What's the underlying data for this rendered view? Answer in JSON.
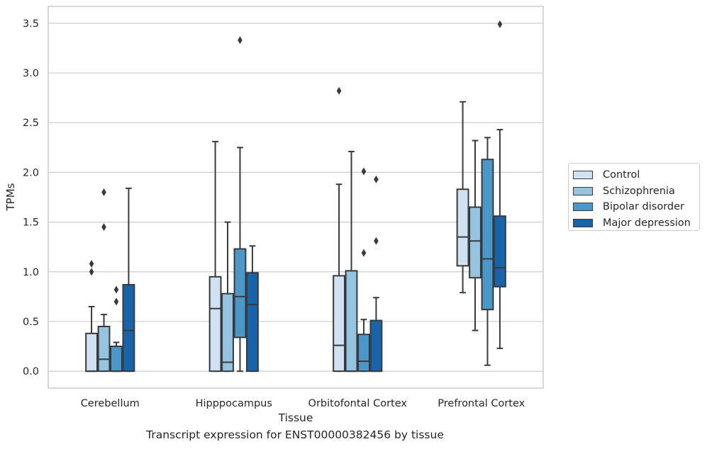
{
  "chart_data": {
    "type": "box",
    "ylabel": "TPMs",
    "xlabel": "Tissue",
    "caption": "Transcript expression for ENST00000382456 by tissue",
    "ylim": [
      -0.17,
      3.67
    ],
    "yticks": [
      0.0,
      0.5,
      1.0,
      1.5,
      2.0,
      2.5,
      3.0,
      3.5
    ],
    "ytick_labels": [
      "0.0",
      "0.5",
      "1.0",
      "1.5",
      "2.0",
      "2.5",
      "3.0",
      "3.5"
    ],
    "grid": "horizontal",
    "legend_position": "right",
    "categories": [
      "Cerebellum",
      "Hipppocampus",
      "Orbitofontal Cortex",
      "Prefrontal Cortex"
    ],
    "series": [
      {
        "name": "Control",
        "color": "#d0e1f2",
        "boxes": [
          {
            "whislo": 0.0,
            "q1": 0.0,
            "med": 0.0,
            "q3": 0.38,
            "whishi": 0.65,
            "fliers": [
              1.0,
              1.08
            ]
          },
          {
            "whislo": 0.0,
            "q1": 0.0,
            "med": 0.63,
            "q3": 0.95,
            "whishi": 2.31,
            "fliers": []
          },
          {
            "whislo": 0.0,
            "q1": 0.0,
            "med": 0.26,
            "q3": 0.96,
            "whishi": 1.88,
            "fliers": [
              2.82
            ]
          },
          {
            "whislo": 0.79,
            "q1": 1.06,
            "med": 1.35,
            "q3": 1.83,
            "whishi": 2.71,
            "fliers": []
          }
        ]
      },
      {
        "name": "Schizophrenia",
        "color": "#94c4df",
        "boxes": [
          {
            "whislo": 0.0,
            "q1": 0.0,
            "med": 0.12,
            "q3": 0.45,
            "whishi": 0.57,
            "fliers": [
              1.45,
              1.8
            ]
          },
          {
            "whislo": 0.0,
            "q1": 0.0,
            "med": 0.09,
            "q3": 0.78,
            "whishi": 1.5,
            "fliers": []
          },
          {
            "whislo": 0.0,
            "q1": 0.0,
            "med": 0.0,
            "q3": 1.01,
            "whishi": 2.21,
            "fliers": []
          },
          {
            "whislo": 0.41,
            "q1": 0.94,
            "med": 1.31,
            "q3": 1.65,
            "whishi": 2.32,
            "fliers": []
          }
        ]
      },
      {
        "name": "Bipolar disorder",
        "color": "#4a98c9",
        "boxes": [
          {
            "whislo": 0.0,
            "q1": 0.0,
            "med": 0.0,
            "q3": 0.25,
            "whishi": 0.29,
            "fliers": [
              0.7,
              0.82
            ]
          },
          {
            "whislo": 0.0,
            "q1": 0.34,
            "med": 0.75,
            "q3": 1.23,
            "whishi": 2.25,
            "fliers": [
              3.33
            ]
          },
          {
            "whislo": 0.0,
            "q1": 0.0,
            "med": 0.1,
            "q3": 0.37,
            "whishi": 0.52,
            "fliers": [
              1.19,
              2.01
            ]
          },
          {
            "whislo": 0.06,
            "q1": 0.62,
            "med": 1.13,
            "q3": 2.13,
            "whishi": 2.35,
            "fliers": []
          }
        ]
      },
      {
        "name": "Major depression",
        "color": "#1764ab",
        "boxes": [
          {
            "whislo": 0.0,
            "q1": 0.0,
            "med": 0.41,
            "q3": 0.87,
            "whishi": 1.84,
            "fliers": []
          },
          {
            "whislo": 0.0,
            "q1": 0.0,
            "med": 0.67,
            "q3": 0.99,
            "whishi": 1.26,
            "fliers": []
          },
          {
            "whislo": 0.0,
            "q1": 0.0,
            "med": 0.0,
            "q3": 0.51,
            "whishi": 0.74,
            "fliers": [
              1.31,
              1.93
            ]
          },
          {
            "whislo": 0.23,
            "q1": 0.85,
            "med": 1.04,
            "q3": 1.56,
            "whishi": 2.43,
            "fliers": [
              3.49
            ]
          }
        ]
      }
    ]
  }
}
